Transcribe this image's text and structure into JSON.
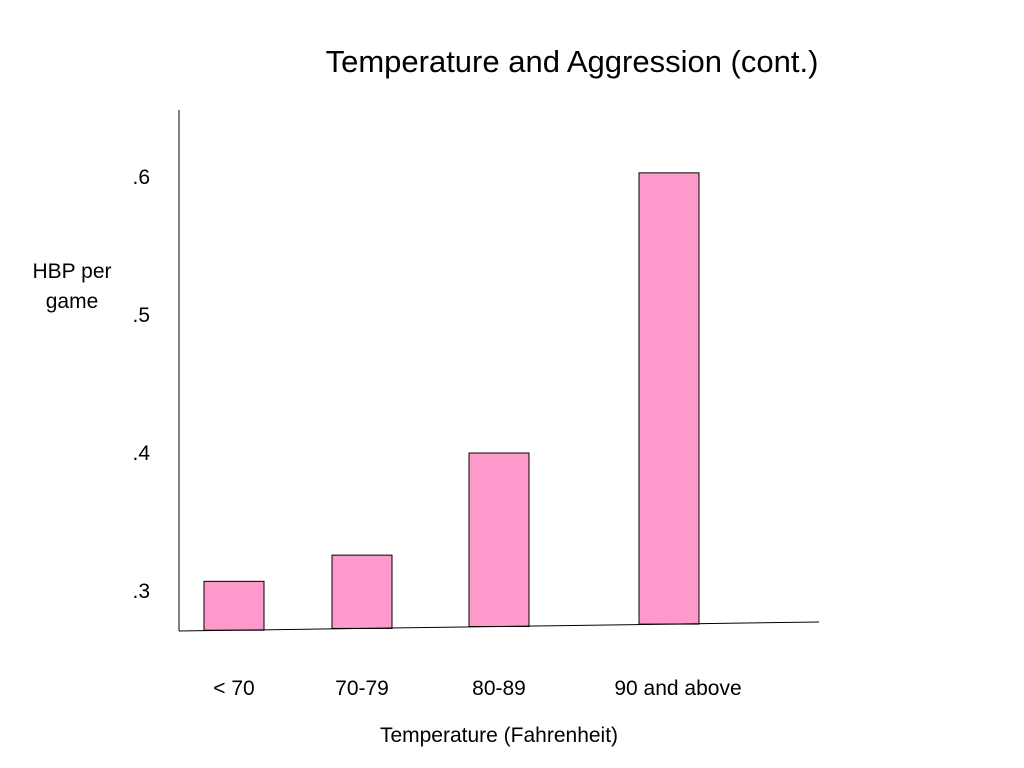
{
  "chart_data": {
    "type": "bar",
    "title": "Temperature and Aggression (cont.)",
    "xlabel": "Temperature (Fahrenheit)",
    "ylabel": [
      "HBP per",
      "game"
    ],
    "categories": [
      "< 70",
      "70-79",
      "80-89",
      "90 and above"
    ],
    "values": [
      0.307,
      0.326,
      0.4,
      0.603
    ],
    "yticks": [
      {
        "value": 0.6,
        "label": ".6"
      },
      {
        "value": 0.5,
        "label": ".5"
      },
      {
        "value": 0.4,
        "label": ".4"
      },
      {
        "value": 0.3,
        "label": ".3"
      }
    ],
    "ylim": [
      0.27,
      0.65
    ],
    "grid": false,
    "legend": "none"
  },
  "colors": {
    "bar_fill": "#ff99cc",
    "bar_stroke": "#000000",
    "axis": "#000000"
  }
}
